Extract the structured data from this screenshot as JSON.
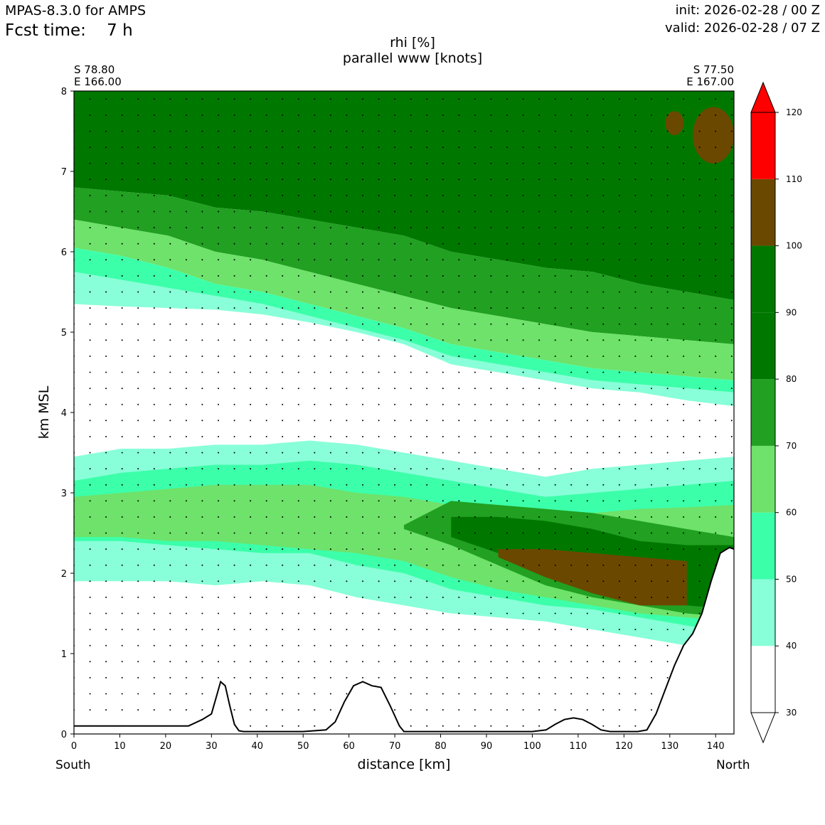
{
  "header": {
    "model": "MPAS-8.3.0 for AMPS",
    "fcst_label": "Fcst time:",
    "fcst_value": "7 h",
    "init": "init: 2026-02-28 / 00 Z",
    "valid": "valid: 2026-02-28 / 07 Z"
  },
  "endpoints": {
    "left_lat": "S 78.80",
    "left_lon": "E 166.00",
    "right_lat": "S 77.50",
    "right_lon": "E 167.00",
    "left_dir": "South",
    "right_dir": "North"
  },
  "chart_data": {
    "type": "contour-cross-section",
    "title": "rhi [%]",
    "subtitle": "parallel www [knots]",
    "xlabel": "distance [km]",
    "ylabel": "km MSL",
    "xlim": [
      0,
      144
    ],
    "ylim": [
      0,
      8
    ],
    "xticks": [
      0,
      10,
      20,
      30,
      40,
      50,
      60,
      70,
      80,
      90,
      100,
      110,
      120,
      130,
      140
    ],
    "yticks": [
      0,
      1,
      2,
      3,
      4,
      5,
      6,
      7,
      8
    ],
    "colorbar": {
      "levels": [
        30,
        40,
        50,
        60,
        70,
        80,
        90,
        100,
        110,
        120
      ],
      "colors": [
        "#ffffff",
        "#88ffd8",
        "#3cffaa",
        "#6ee26a",
        "#21a021",
        "#007800",
        "#007800",
        "#6b4800",
        "#ff0000"
      ],
      "extend": "both"
    },
    "layers": [
      {
        "name": "rhi 80-100 upper",
        "color": "#007800",
        "top": [
          8,
          8,
          8,
          8,
          8,
          8,
          8,
          8,
          8,
          8,
          8,
          8,
          8,
          8,
          8
        ],
        "bottom": [
          6.8,
          6.75,
          6.7,
          6.55,
          6.5,
          6.4,
          6.3,
          6.2,
          6.0,
          5.9,
          5.8,
          5.75,
          5.6,
          5.5,
          5.4
        ]
      },
      {
        "name": "rhi 70-80 upper",
        "color": "#21a021",
        "top": [
          6.8,
          6.75,
          6.7,
          6.55,
          6.5,
          6.4,
          6.3,
          6.2,
          6.0,
          5.9,
          5.8,
          5.75,
          5.6,
          5.5,
          5.4
        ],
        "bottom": [
          6.4,
          6.3,
          6.2,
          6.0,
          5.9,
          5.75,
          5.6,
          5.45,
          5.3,
          5.2,
          5.1,
          5.0,
          4.95,
          4.9,
          4.85
        ]
      },
      {
        "name": "rhi 60-70 upper",
        "color": "#6ee26a",
        "top": [
          6.4,
          6.3,
          6.2,
          6.0,
          5.9,
          5.75,
          5.6,
          5.45,
          5.3,
          5.2,
          5.1,
          5.0,
          4.95,
          4.9,
          4.85
        ],
        "bottom": [
          6.05,
          5.95,
          5.8,
          5.6,
          5.5,
          5.35,
          5.2,
          5.05,
          4.85,
          4.75,
          4.65,
          4.55,
          4.5,
          4.45,
          4.4
        ]
      },
      {
        "name": "rhi 50-60 upper",
        "color": "#3cffaa",
        "top": [
          6.05,
          5.95,
          5.8,
          5.6,
          5.5,
          5.35,
          5.2,
          5.05,
          4.85,
          4.75,
          4.65,
          4.55,
          4.5,
          4.45,
          4.4
        ],
        "bottom": [
          5.75,
          5.65,
          5.55,
          5.45,
          5.35,
          5.2,
          5.05,
          4.9,
          4.7,
          4.6,
          4.5,
          4.4,
          4.35,
          4.3,
          4.25
        ]
      },
      {
        "name": "rhi 40-50 upper",
        "color": "#88ffd8",
        "top": [
          5.75,
          5.65,
          5.55,
          5.45,
          5.35,
          5.2,
          5.05,
          4.9,
          4.7,
          4.6,
          4.5,
          4.4,
          4.35,
          4.3,
          4.25
        ],
        "bottom": [
          5.35,
          5.32,
          5.3,
          5.28,
          5.22,
          5.12,
          5.0,
          4.85,
          4.6,
          4.5,
          4.4,
          4.3,
          4.25,
          4.15,
          4.08
        ]
      },
      {
        "name": "rhi 40-50 mid",
        "color": "#88ffd8",
        "top": [
          3.45,
          3.55,
          3.55,
          3.6,
          3.6,
          3.65,
          3.6,
          3.5,
          3.4,
          3.3,
          3.2,
          3.3,
          3.35,
          3.4,
          3.45
        ],
        "bottom": [
          1.9,
          1.9,
          1.9,
          1.85,
          1.9,
          1.85,
          1.7,
          1.6,
          1.5,
          1.45,
          1.4,
          1.3,
          1.2,
          1.1,
          1.0
        ]
      },
      {
        "name": "rhi 50-60 mid",
        "color": "#3cffaa",
        "top": [
          3.15,
          3.25,
          3.3,
          3.35,
          3.35,
          3.4,
          3.35,
          3.25,
          3.15,
          3.05,
          2.95,
          3.0,
          3.05,
          3.1,
          3.15
        ],
        "bottom": [
          2.4,
          2.4,
          2.35,
          2.3,
          2.25,
          2.25,
          2.1,
          2.0,
          1.8,
          1.7,
          1.6,
          1.55,
          1.45,
          1.35,
          1.25
        ]
      },
      {
        "name": "rhi 60-70 mid",
        "color": "#6ee26a",
        "top": [
          2.95,
          3.0,
          3.05,
          3.1,
          3.1,
          3.1,
          3.0,
          2.95,
          2.85,
          2.75,
          2.7,
          2.75,
          2.8,
          2.82,
          2.85
        ],
        "bottom": [
          2.45,
          2.45,
          2.4,
          2.4,
          2.35,
          2.3,
          2.25,
          2.15,
          1.95,
          1.8,
          1.7,
          1.6,
          1.5,
          1.45,
          1.4
        ]
      },
      {
        "name": "rhi 70-80 mid",
        "color": "#21a021",
        "top": [
          null,
          null,
          null,
          null,
          null,
          null,
          null,
          2.6,
          2.9,
          2.85,
          2.8,
          2.75,
          2.65,
          2.55,
          2.45
        ],
        "bottom": [
          null,
          null,
          null,
          null,
          null,
          null,
          null,
          2.55,
          2.35,
          2.1,
          1.85,
          1.7,
          1.6,
          1.5,
          1.45
        ]
      },
      {
        "name": "rhi 80-100 mid",
        "color": "#007800",
        "top": [
          null,
          null,
          null,
          null,
          null,
          null,
          null,
          null,
          2.7,
          2.7,
          2.65,
          2.55,
          2.4,
          2.35,
          2.35
        ],
        "bottom": [
          null,
          null,
          null,
          null,
          null,
          null,
          null,
          null,
          2.45,
          2.25,
          2.0,
          1.85,
          1.7,
          1.6,
          1.55
        ]
      },
      {
        "name": "rhi 100-110 mid",
        "color": "#6b4800",
        "top": [
          null,
          null,
          null,
          null,
          null,
          null,
          null,
          null,
          null,
          2.3,
          2.3,
          2.25,
          2.2,
          2.15,
          null
        ],
        "bottom": [
          null,
          null,
          null,
          null,
          null,
          null,
          null,
          null,
          null,
          2.2,
          1.95,
          1.75,
          1.6,
          1.6,
          null
        ]
      }
    ],
    "blobs": [
      {
        "name": "rhi 100-110 patch",
        "color": "#6b4800",
        "x": [
          135,
          144
        ],
        "y": [
          7.1,
          7.8
        ]
      },
      {
        "name": "rhi 100-110 patch",
        "color": "#6b4800",
        "x": [
          129,
          133
        ],
        "y": [
          7.45,
          7.75
        ]
      }
    ],
    "terrain": {
      "x": [
        0,
        5,
        10,
        15,
        20,
        25,
        28,
        30,
        31,
        32,
        33,
        34,
        35,
        36,
        37,
        38,
        40,
        50,
        55,
        57,
        59,
        61,
        63,
        65,
        67,
        69,
        71,
        72,
        73,
        75,
        80,
        90,
        100,
        103,
        105,
        107,
        109,
        111,
        113,
        115,
        117,
        120,
        123,
        125,
        127,
        129,
        131,
        133,
        135,
        137,
        139,
        141,
        143,
        144
      ],
      "y": [
        0.1,
        0.1,
        0.1,
        0.1,
        0.1,
        0.1,
        0.18,
        0.25,
        0.45,
        0.65,
        0.6,
        0.35,
        0.12,
        0.04,
        0.03,
        0.03,
        0.03,
        0.03,
        0.05,
        0.15,
        0.4,
        0.6,
        0.65,
        0.6,
        0.58,
        0.35,
        0.1,
        0.03,
        0.03,
        0.03,
        0.03,
        0.03,
        0.03,
        0.05,
        0.12,
        0.18,
        0.2,
        0.18,
        0.12,
        0.05,
        0.03,
        0.03,
        0.03,
        0.05,
        0.25,
        0.55,
        0.85,
        1.1,
        1.25,
        1.5,
        1.9,
        2.25,
        2.32,
        2.3
      ]
    }
  }
}
